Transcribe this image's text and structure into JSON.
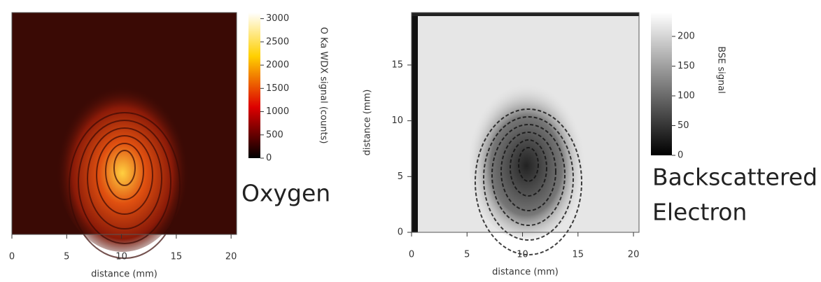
{
  "chart_data": [
    {
      "type": "heatmap",
      "colormap": "hot",
      "xlabel": "distance (mm)",
      "xlim": [
        0,
        20.5
      ],
      "xticks": [
        0,
        5,
        10,
        15,
        20
      ],
      "ylim": [
        0,
        19.7
      ],
      "clim": [
        0,
        3130
      ],
      "cticks": [
        0,
        500,
        1000,
        1500,
        2000,
        2500,
        3000
      ],
      "colorbar_label": "O Ka WDX signal (counts)",
      "annotation": [
        "Oxygen"
      ]
    },
    {
      "type": "heatmap",
      "colormap": "gray",
      "xlabel": "distance (mm)",
      "ylabel": "distance  (mm)",
      "xlim": [
        0,
        20.5
      ],
      "xticks": [
        0,
        5,
        10,
        15,
        20
      ],
      "ylim": [
        0,
        19.7
      ],
      "yticks": [
        0,
        5,
        10,
        15
      ],
      "clim": [
        0,
        240
      ],
      "cticks": [
        0,
        50,
        100,
        150,
        200
      ],
      "colorbar_label": "BSE signal",
      "annotation": [
        "Backscattered",
        "Electron"
      ]
    }
  ]
}
